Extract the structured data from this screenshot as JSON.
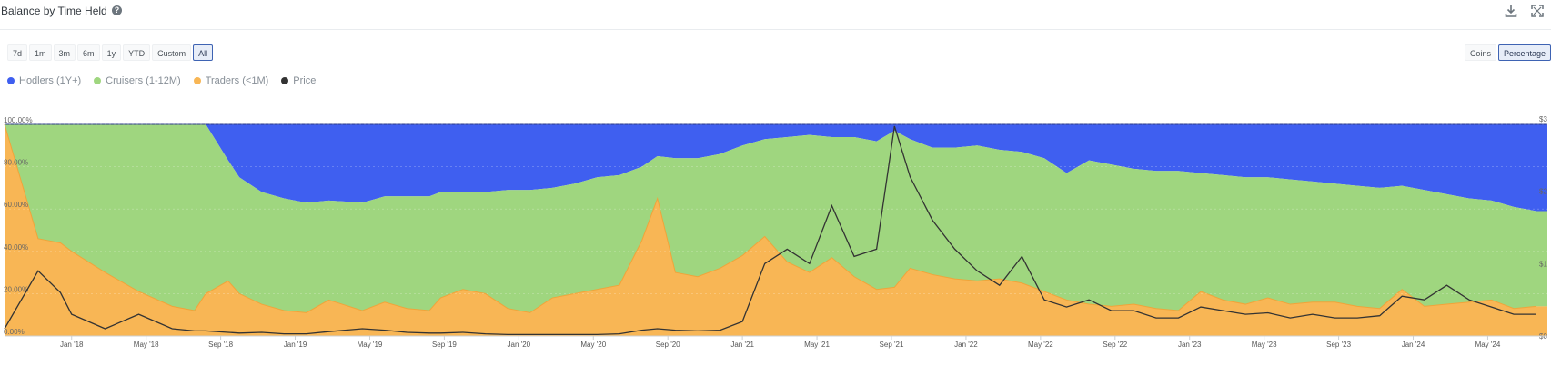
{
  "header": {
    "title": "Balance by Time Held",
    "help_icon": "question-circle-icon",
    "download_icon": "download-icon",
    "fullscreen_icon": "fullscreen-icon"
  },
  "range_buttons": [
    {
      "label": "7d",
      "active": false
    },
    {
      "label": "1m",
      "active": false
    },
    {
      "label": "3m",
      "active": false
    },
    {
      "label": "6m",
      "active": false
    },
    {
      "label": "1y",
      "active": false
    },
    {
      "label": "YTD",
      "active": false
    },
    {
      "label": "Custom",
      "active": false
    },
    {
      "label": "All",
      "active": true
    }
  ],
  "mode_buttons": [
    {
      "label": "Coins",
      "active": false
    },
    {
      "label": "Percentage",
      "active": true
    }
  ],
  "colors": {
    "hodlers": "#3f5ff0",
    "cruisers": "#9fd67f",
    "traders": "#f8b655",
    "price": "#333333"
  },
  "chart_data": {
    "type": "area",
    "stacked": true,
    "percent": true,
    "title": "Balance by Time Held",
    "legend_position": "top-left",
    "x_ticks": [
      "Jan '18",
      "May '18",
      "Sep '18",
      "Jan '19",
      "May '19",
      "Sep '19",
      "Jan '20",
      "May '20",
      "Sep '20",
      "Jan '21",
      "May '21",
      "Sep '21",
      "Jan '22",
      "May '22",
      "Sep '22",
      "Jan '23",
      "May '23",
      "Sep '23",
      "Jan '24",
      "May '24"
    ],
    "y_ticks": [
      "0.00%",
      "20.00%",
      "40.00%",
      "60.00%",
      "80.00%",
      "100.00%"
    ],
    "ylim": [
      0,
      100
    ],
    "price_axis_ticks": [
      "$3",
      "$2",
      "$1",
      "$0"
    ],
    "x": [
      2017.7,
      2017.85,
      2017.95,
      2018.0,
      2018.15,
      2018.3,
      2018.45,
      2018.55,
      2018.6,
      2018.7,
      2018.75,
      2018.85,
      2018.95,
      2019.05,
      2019.15,
      2019.3,
      2019.4,
      2019.5,
      2019.6,
      2019.65,
      2019.75,
      2019.85,
      2019.95,
      2020.05,
      2020.15,
      2020.25,
      2020.35,
      2020.45,
      2020.55,
      2020.62,
      2020.7,
      2020.8,
      2020.9,
      2021.0,
      2021.1,
      2021.2,
      2021.3,
      2021.4,
      2021.5,
      2021.6,
      2021.68,
      2021.75,
      2021.85,
      2021.95,
      2022.05,
      2022.15,
      2022.25,
      2022.35,
      2022.45,
      2022.55,
      2022.65,
      2022.75,
      2022.85,
      2022.95,
      2023.05,
      2023.15,
      2023.25,
      2023.35,
      2023.45,
      2023.55,
      2023.65,
      2023.75,
      2023.85,
      2023.95,
      2024.05,
      2024.15,
      2024.25,
      2024.35,
      2024.45,
      2024.55
    ],
    "series": [
      {
        "name": "Traders (<1M)",
        "values": [
          100,
          46,
          44,
          40,
          30,
          21,
          14,
          12,
          20,
          26,
          20,
          15,
          12,
          11,
          17,
          12,
          16,
          13,
          12,
          18,
          22,
          20,
          13,
          11,
          18,
          20,
          22,
          24,
          45,
          65,
          30,
          28,
          32,
          38,
          47,
          35,
          30,
          37,
          28,
          22,
          23,
          32,
          29,
          27,
          26,
          27,
          25,
          21,
          17,
          15,
          14,
          15,
          13,
          12,
          21,
          17,
          15,
          18,
          15,
          16,
          16,
          14,
          13,
          22,
          14,
          15,
          16,
          17,
          13,
          14
        ]
      },
      {
        "name": "Cruisers (1-12M)",
        "values": [
          0,
          54,
          56,
          60,
          70,
          79,
          86,
          88,
          80,
          57,
          55,
          53,
          53,
          52,
          47,
          51,
          50,
          53,
          54,
          50,
          46,
          48,
          56,
          58,
          52,
          52,
          53,
          52,
          35,
          20,
          54,
          56,
          54,
          52,
          46,
          59,
          65,
          57,
          66,
          70,
          74,
          61,
          60,
          62,
          64,
          61,
          62,
          63,
          60,
          68,
          67,
          64,
          65,
          66,
          56,
          59,
          60,
          57,
          59,
          57,
          56,
          57,
          57,
          49,
          55,
          52,
          49,
          47,
          48,
          45
        ]
      },
      {
        "name": "Hodlers (1Y+)",
        "values": [
          0,
          0,
          0,
          0,
          0,
          0,
          0,
          0,
          0,
          17,
          25,
          32,
          35,
          37,
          36,
          37,
          34,
          34,
          34,
          32,
          32,
          32,
          31,
          31,
          30,
          28,
          25,
          24,
          20,
          15,
          16,
          16,
          14,
          10,
          7,
          6,
          5,
          6,
          6,
          8,
          3,
          7,
          11,
          11,
          10,
          12,
          13,
          16,
          23,
          17,
          19,
          21,
          22,
          22,
          23,
          24,
          25,
          25,
          26,
          27,
          28,
          29,
          30,
          29,
          31,
          33,
          35,
          36,
          39,
          41
        ]
      },
      {
        "name": "Price",
        "axis": "right",
        "values": [
          0.1,
          0.9,
          0.6,
          0.3,
          0.1,
          0.3,
          0.1,
          0.07,
          0.07,
          0.05,
          0.04,
          0.05,
          0.03,
          0.03,
          0.06,
          0.1,
          0.08,
          0.05,
          0.04,
          0.04,
          0.05,
          0.03,
          0.02,
          0.02,
          0.02,
          0.02,
          0.02,
          0.03,
          0.08,
          0.1,
          0.08,
          0.07,
          0.08,
          0.2,
          1.0,
          1.2,
          1.0,
          1.8,
          1.1,
          1.2,
          2.9,
          2.2,
          1.6,
          1.2,
          0.9,
          0.7,
          1.1,
          0.5,
          0.4,
          0.5,
          0.35,
          0.35,
          0.25,
          0.25,
          0.4,
          0.35,
          0.3,
          0.32,
          0.25,
          0.3,
          0.25,
          0.25,
          0.28,
          0.55,
          0.5,
          0.7,
          0.5,
          0.4,
          0.3,
          0.3
        ]
      }
    ]
  }
}
